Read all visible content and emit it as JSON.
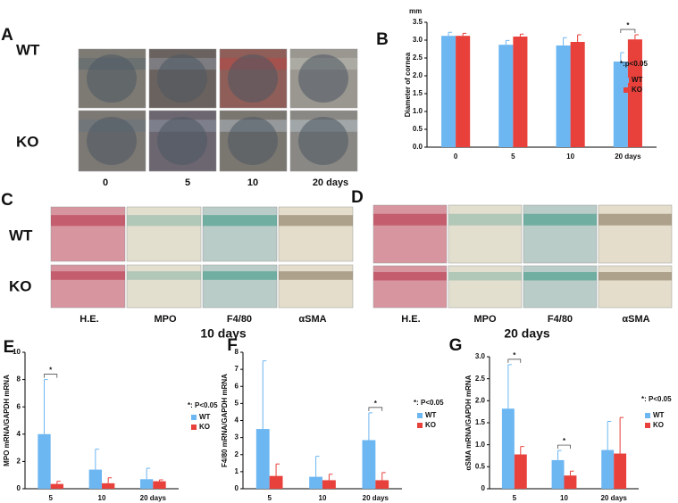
{
  "panels": {
    "A": {
      "letter": "A",
      "rows": [
        "WT",
        "KO"
      ],
      "columns": [
        "0",
        "5",
        "10",
        "20  days"
      ]
    },
    "C": {
      "letter": "C",
      "rows": [
        "WT",
        "KO"
      ],
      "columns": [
        "H.E.",
        "MPO",
        "F4/80",
        "αSMA"
      ],
      "caption": "10 days"
    },
    "D": {
      "letter": "D",
      "columns": [
        "H.E.",
        "MPO",
        "F4/80",
        "αSMA"
      ],
      "caption": "20 days"
    }
  },
  "chart_data": [
    {
      "type": "bar",
      "letter": "B",
      "unit": "mm",
      "y_label": "Diameter of cornea",
      "annotation": "*:p<0.05",
      "categories": [
        "0",
        "5",
        "10",
        "20 days"
      ],
      "series": [
        {
          "name": "WT",
          "color": "#6cb6f2",
          "values": [
            3.12,
            2.87,
            2.85,
            2.4
          ],
          "errors": [
            0.1,
            0.12,
            0.22,
            0.25
          ]
        },
        {
          "name": "KO",
          "color": "#e8403a",
          "values": [
            3.12,
            3.1,
            2.95,
            3.02
          ],
          "errors": [
            0.07,
            0.07,
            0.2,
            0.13
          ]
        }
      ],
      "ylim": [
        0,
        3.5
      ],
      "yticks": [
        {
          "value": 0,
          "label": "0.0"
        },
        0.5,
        {
          "value": 1,
          "label": "1.0"
        },
        1.5,
        {
          "value": 2,
          "label": "2.0"
        },
        2.5,
        {
          "value": 3,
          "label": "3.0"
        },
        3.5
      ],
      "significance": [
        {
          "category": "20 days",
          "label": "*"
        }
      ]
    },
    {
      "type": "bar",
      "letter": "E",
      "y_label": "MPO mRNA/GAPDH mRNA",
      "annotation": "*: P<0.05",
      "categories": [
        "5",
        "10",
        "20 days"
      ],
      "series": [
        {
          "name": "WT",
          "color": "#6cb6f2",
          "values": [
            4.0,
            1.4,
            0.7
          ],
          "errors": [
            4.0,
            1.5,
            0.8
          ]
        },
        {
          "name": "KO",
          "color": "#e8403a",
          "values": [
            0.35,
            0.4,
            0.55
          ],
          "errors": [
            0.2,
            0.4,
            0.1
          ]
        }
      ],
      "ylim": [
        0,
        10
      ],
      "yticks": [
        0,
        2,
        4,
        6,
        8,
        10
      ],
      "significance": [
        {
          "category": "5",
          "label": "*"
        }
      ]
    },
    {
      "type": "bar",
      "letter": "F",
      "y_label": "F4/80 mRNA/GAPDH mRNA",
      "annotation": "*: P<0.05",
      "categories": [
        "5",
        "10",
        "20 days"
      ],
      "series": [
        {
          "name": "WT",
          "color": "#6cb6f2",
          "values": [
            3.5,
            0.7,
            2.85
          ],
          "errors": [
            4.0,
            1.2,
            1.6
          ]
        },
        {
          "name": "KO",
          "color": "#e8403a",
          "values": [
            0.75,
            0.5,
            0.5
          ],
          "errors": [
            0.7,
            0.35,
            0.45
          ]
        }
      ],
      "ylim": [
        0,
        8
      ],
      "yticks": [
        0,
        1,
        2,
        3,
        4,
        5,
        6,
        7,
        8
      ],
      "significance": [
        {
          "category": "20 days",
          "label": "*"
        }
      ]
    },
    {
      "type": "bar",
      "letter": "G",
      "y_label": "αSMA mRNA/GAPDH mRNA",
      "annotation": "*: P<0.05",
      "categories": [
        "5",
        "10",
        "20 days"
      ],
      "series": [
        {
          "name": "WT",
          "color": "#6cb6f2",
          "values": [
            1.82,
            0.65,
            0.88
          ],
          "errors": [
            1.0,
            0.22,
            0.65
          ]
        },
        {
          "name": "KO",
          "color": "#e8403a",
          "values": [
            0.78,
            0.3,
            0.8
          ],
          "errors": [
            0.18,
            0.1,
            0.82
          ]
        }
      ],
      "ylim": [
        0,
        3
      ],
      "yticks": [
        0,
        0.5,
        {
          "value": 1,
          "label": "1.0"
        },
        1.5,
        {
          "value": 2,
          "label": "2.0"
        },
        2.5,
        {
          "value": 3,
          "label": "3.0"
        }
      ],
      "significance": [
        {
          "category": "5",
          "label": "*"
        },
        {
          "category": "10",
          "label": "*"
        }
      ]
    }
  ]
}
